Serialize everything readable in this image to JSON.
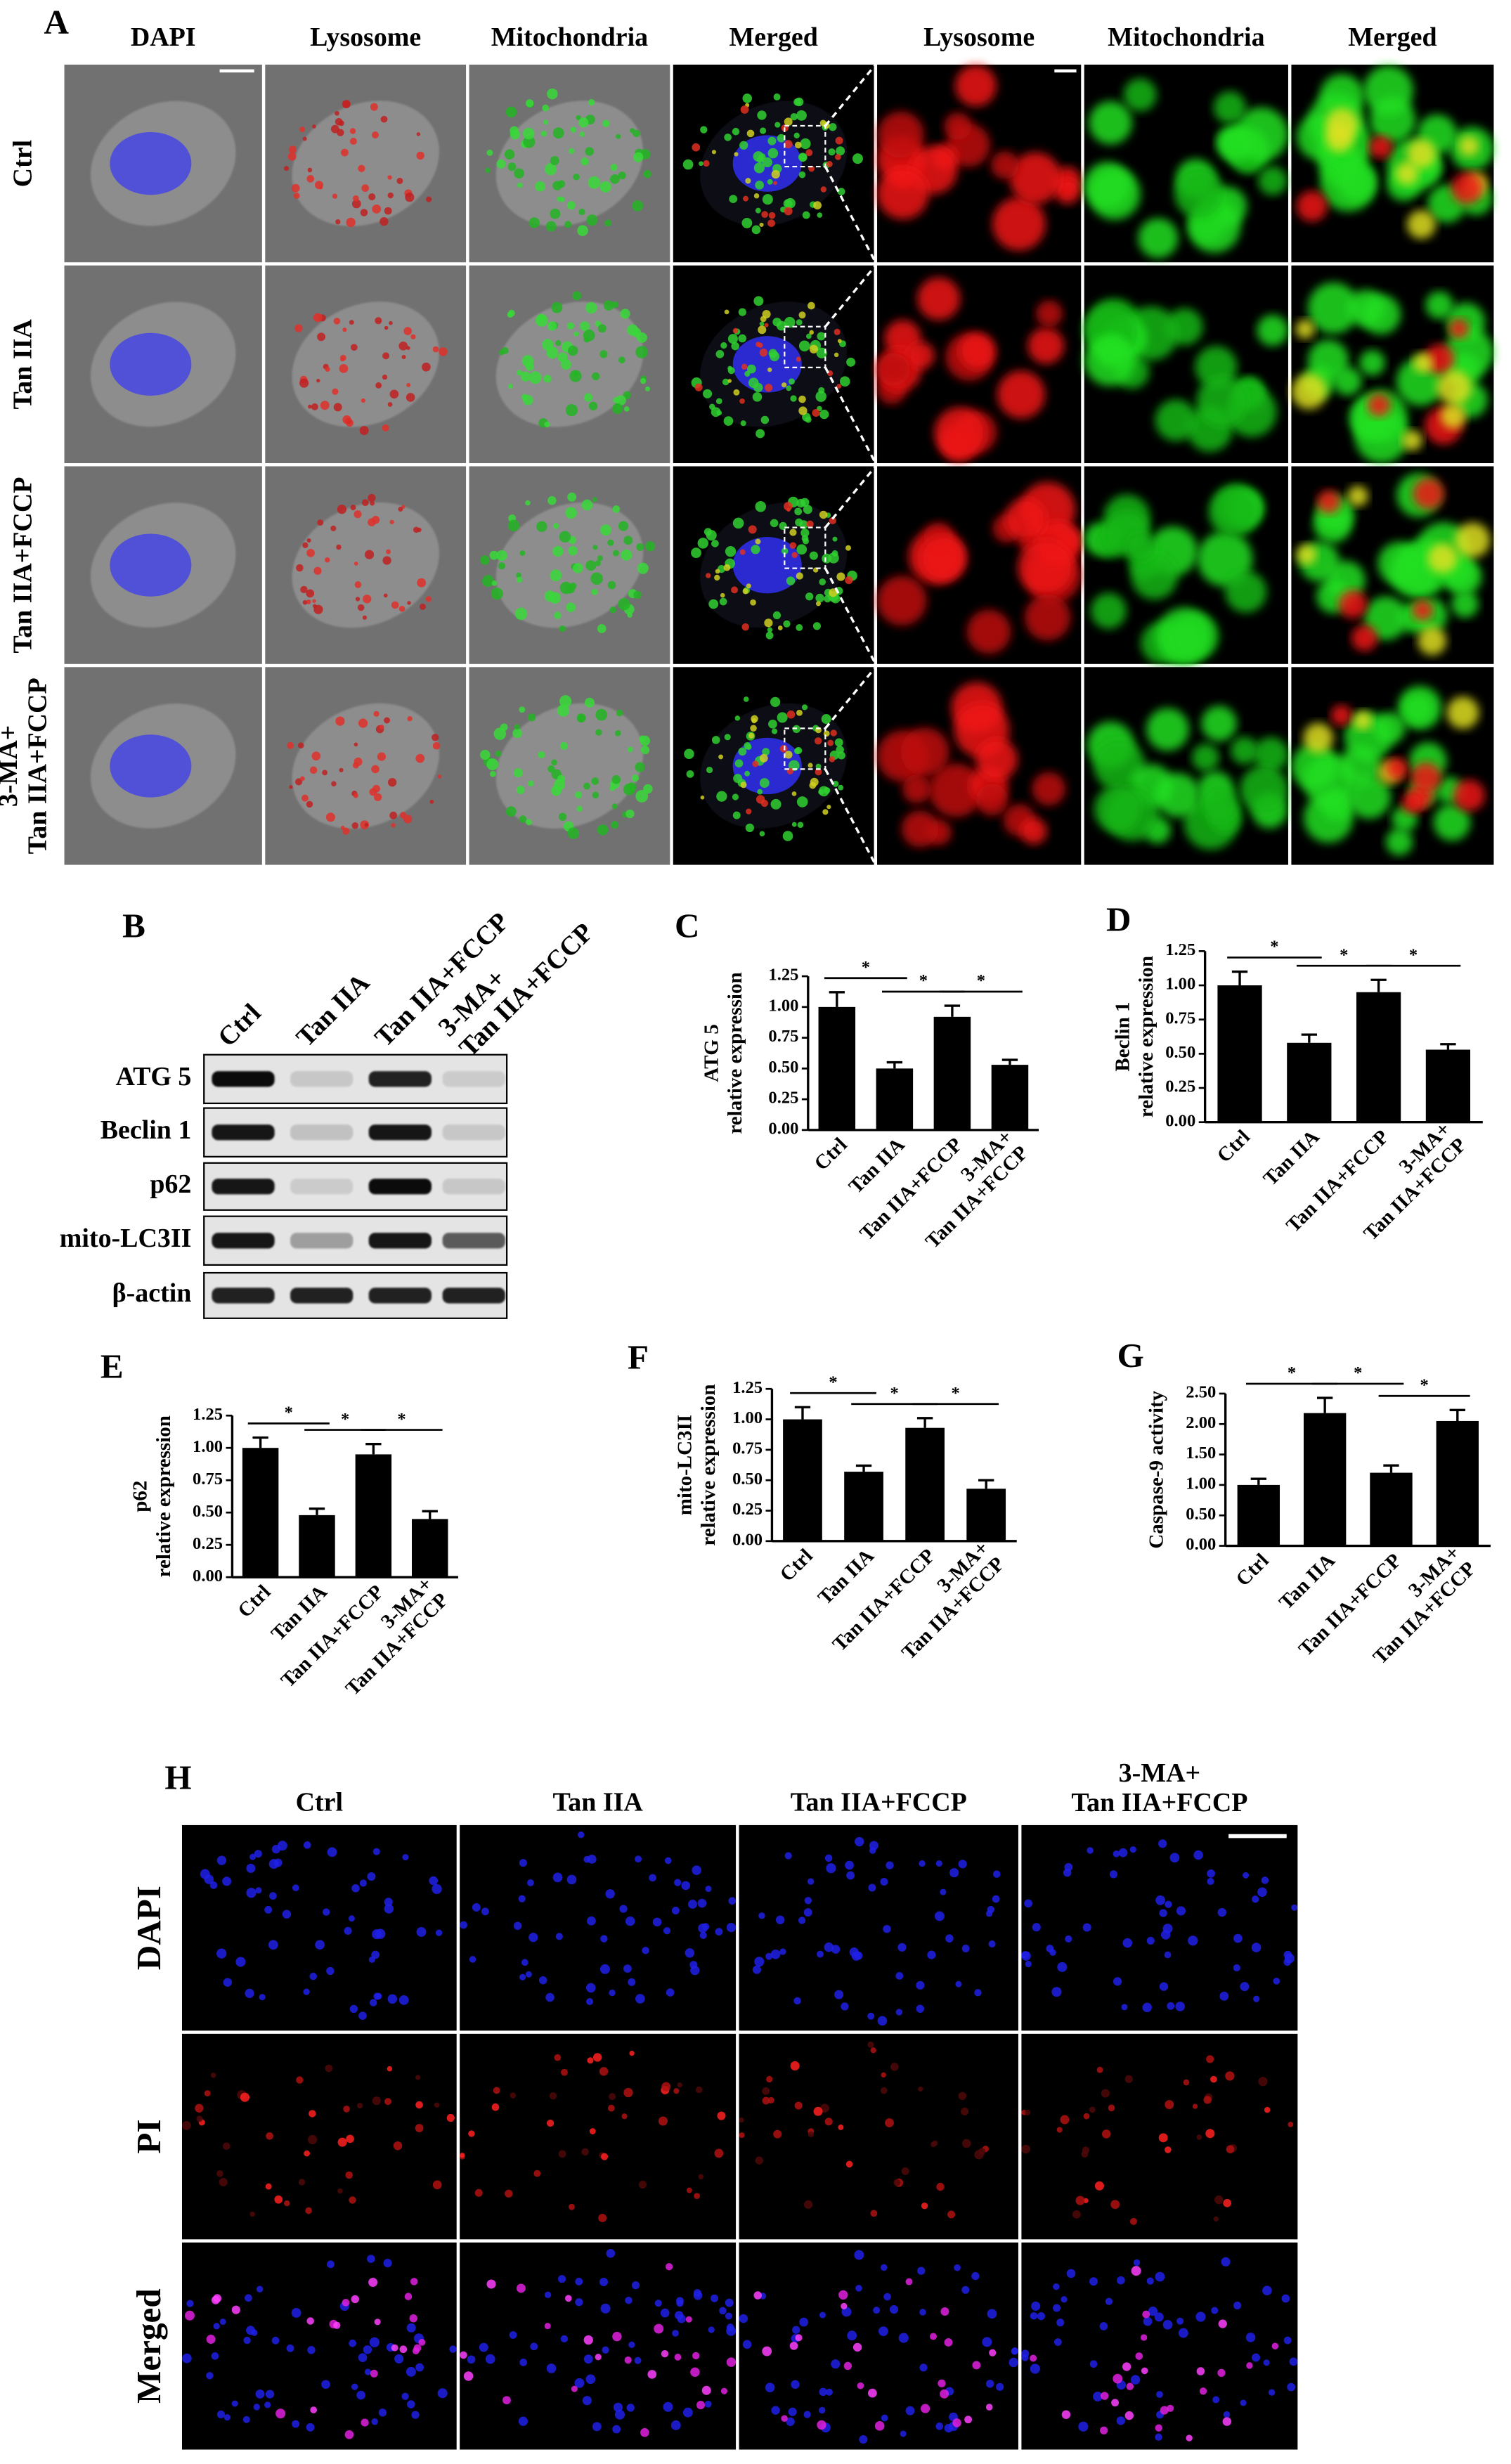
{
  "panel_a": {
    "label": "A",
    "columns": [
      "DAPI",
      "Lysosome",
      "Mitochondria",
      "Merged",
      "Lysosome",
      "Mitochondria",
      "Merged"
    ],
    "rows": [
      "Ctrl",
      "Tan IIA",
      "Tan IIA+FCCP",
      "3-MA+\nTan IIA+FCCP"
    ]
  },
  "panel_b": {
    "label": "B",
    "lanes": [
      "Ctrl",
      "Tan IIA",
      "Tan IIA+FCCP",
      "3-MA+\nTan IIA+FCCP"
    ],
    "proteins": [
      "ATG 5",
      "Beclin 1",
      "p62",
      "mito-LC3II",
      "β-actin"
    ]
  },
  "chart_data": [
    {
      "panel": "C",
      "type": "bar",
      "ylabel": [
        "ATG 5",
        "relative expression"
      ],
      "categories": [
        "Ctrl",
        "Tan IIA",
        "Tan IIA+FCCP",
        "3-MA+\nTan IIA+FCCP"
      ],
      "values": [
        1.0,
        0.5,
        0.92,
        0.53
      ],
      "errors": [
        0.12,
        0.05,
        0.09,
        0.04
      ],
      "color": "#000000",
      "ylim": [
        0,
        1.25
      ],
      "yticks": [
        {
          "value": 0,
          "label": "0.00"
        },
        0.25,
        {
          "value": 0.5,
          "label": "0.50"
        },
        0.75,
        {
          "value": 1,
          "label": "1.00"
        },
        1.25
      ],
      "annotations": [
        "*",
        "*",
        "*"
      ]
    },
    {
      "panel": "D",
      "type": "bar",
      "ylabel": [
        "Beclin 1",
        "relative expression"
      ],
      "categories": [
        "Ctrl",
        "Tan IIA",
        "Tan IIA+FCCP",
        "3-MA+\nTan IIA+FCCP"
      ],
      "values": [
        1.0,
        0.58,
        0.95,
        0.53
      ],
      "errors": [
        0.1,
        0.06,
        0.09,
        0.04
      ],
      "color": "#000000",
      "ylim": [
        0,
        1.25
      ],
      "yticks": [
        {
          "value": 0,
          "label": "0.00"
        },
        0.25,
        {
          "value": 0.5,
          "label": "0.50"
        },
        0.75,
        {
          "value": 1,
          "label": "1.00"
        },
        1.25
      ],
      "annotations": [
        "*",
        "*",
        "*"
      ]
    },
    {
      "panel": "E",
      "type": "bar",
      "ylabel": [
        "p62",
        "relative expression"
      ],
      "categories": [
        "Ctrl",
        "Tan IIA",
        "Tan IIA+FCCP",
        "3-MA+\nTan IIA+FCCP"
      ],
      "values": [
        1.0,
        0.48,
        0.95,
        0.45
      ],
      "errors": [
        0.08,
        0.05,
        0.08,
        0.06
      ],
      "color": "#000000",
      "ylim": [
        0,
        1.25
      ],
      "yticks": [
        {
          "value": 0,
          "label": "0.00"
        },
        0.25,
        {
          "value": 0.5,
          "label": "0.50"
        },
        0.75,
        {
          "value": 1,
          "label": "1.00"
        },
        1.25
      ],
      "annotations": [
        "*",
        "*",
        "*"
      ]
    },
    {
      "panel": "F",
      "type": "bar",
      "ylabel": [
        "mito-LC3II",
        "relative expression"
      ],
      "categories": [
        "Ctrl",
        "Tan IIA",
        "Tan IIA+FCCP",
        "3-MA+\nTan IIA+FCCP"
      ],
      "values": [
        1.0,
        0.57,
        0.93,
        0.43
      ],
      "errors": [
        0.1,
        0.05,
        0.08,
        0.07
      ],
      "color": "#000000",
      "ylim": [
        0,
        1.25
      ],
      "yticks": [
        {
          "value": 0,
          "label": "0.00"
        },
        0.25,
        {
          "value": 0.5,
          "label": "0.50"
        },
        0.75,
        {
          "value": 1,
          "label": "1.00"
        },
        1.25
      ],
      "annotations": [
        "*",
        "*",
        "*"
      ]
    },
    {
      "panel": "G",
      "type": "bar",
      "ylabel": [
        "Caspase-9 activity"
      ],
      "categories": [
        "Ctrl",
        "Tan IIA",
        "Tan IIA+FCCP",
        "3-MA+\nTan IIA+FCCP"
      ],
      "values": [
        1.0,
        2.18,
        1.2,
        2.05
      ],
      "errors": [
        0.1,
        0.25,
        0.12,
        0.18
      ],
      "color": "#000000",
      "ylim": [
        0,
        2.5
      ],
      "yticks": [
        {
          "value": 0,
          "label": "0.00"
        },
        {
          "value": 0.5,
          "label": "0.50"
        },
        {
          "value": 1,
          "label": "1.00"
        },
        {
          "value": 1.5,
          "label": "1.50"
        },
        {
          "value": 2,
          "label": "2.00"
        },
        {
          "value": 2.5,
          "label": "2.50"
        }
      ],
      "annotations": [
        "*",
        "*",
        "*"
      ]
    }
  ],
  "panel_h": {
    "label": "H",
    "columns": [
      "Ctrl",
      "Tan IIA",
      "Tan IIA+FCCP",
      "3-MA+\nTan IIA+FCCP"
    ],
    "rows": [
      "DAPI",
      "PI",
      "Merged"
    ]
  }
}
